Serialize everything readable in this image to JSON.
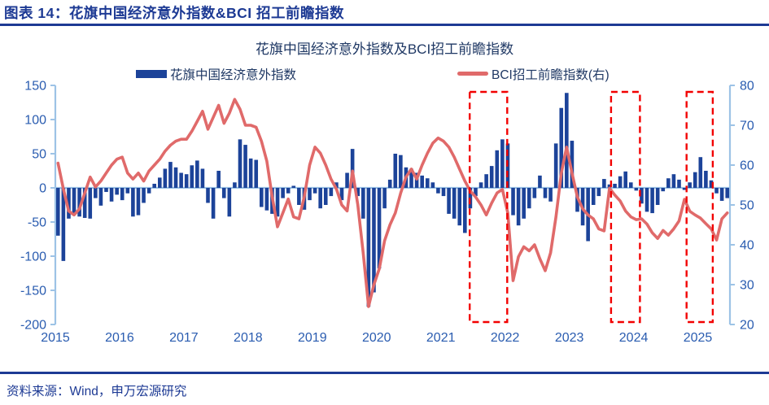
{
  "header": {
    "title": "图表 14：花旗中国经济意外指数&BCI 招工前瞻指数"
  },
  "footer": {
    "source": "资料来源：Wind，申万宏源研究"
  },
  "colors": {
    "navy_rule": "#1d3a94",
    "bar": "#1c4399",
    "line": "#e06a6a",
    "axis": "#9dc3e6",
    "tick_label": "#2a5cb0",
    "highlight_box": "#f20000",
    "title_text": "#1f3864"
  },
  "chart_data": {
    "type": "combo",
    "title": "花旗中国经济意外指数及BCI招工前瞻指数",
    "x": {
      "frequency": "monthly",
      "start": "2015-01",
      "year_labels": [
        "2015",
        "2016",
        "2017",
        "2018",
        "2019",
        "2020",
        "2021",
        "2022",
        "2023",
        "2024",
        "2025"
      ]
    },
    "left_axis": {
      "ticks": [
        150,
        100,
        50,
        0,
        -50,
        -100,
        -150,
        -200
      ],
      "min": -200,
      "max": 150
    },
    "right_axis": {
      "ticks": [
        80,
        70,
        60,
        50,
        40,
        30,
        20
      ],
      "min": 20,
      "max": 80
    },
    "legend": [
      {
        "label": "花旗中国经济意外指数",
        "type": "bar",
        "color": "#1c4399"
      },
      {
        "label": "BCI招工前瞻指数(右)",
        "type": "line",
        "color": "#e06a6a"
      }
    ],
    "series": [
      {
        "name": "花旗中国经济意外指数",
        "type": "bar",
        "axis": "left",
        "color": "#1c4399",
        "values": [
          -70,
          -107,
          -45,
          -38,
          -42,
          -44,
          -45,
          -15,
          -26,
          -6,
          -20,
          -10,
          -18,
          -8,
          -42,
          -40,
          -22,
          -8,
          6,
          15,
          28,
          38,
          30,
          22,
          20,
          33,
          40,
          28,
          -22,
          -45,
          25,
          -15,
          -42,
          8,
          71,
          63,
          43,
          41,
          -28,
          -33,
          -38,
          -42,
          -15,
          -8,
          3,
          -25,
          -32,
          -18,
          -8,
          -30,
          -25,
          -12,
          8,
          -18,
          22,
          57,
          -12,
          -45,
          -174,
          -153,
          -118,
          -30,
          12,
          50,
          48,
          30,
          28,
          22,
          18,
          14,
          8,
          -8,
          -12,
          -38,
          -45,
          -55,
          -66,
          -30,
          -12,
          8,
          20,
          32,
          55,
          71,
          65,
          -40,
          -55,
          -45,
          -30,
          -15,
          18,
          -15,
          -20,
          65,
          117,
          139,
          69,
          -35,
          -55,
          -78,
          -25,
          -12,
          13,
          5,
          6,
          17,
          24,
          8,
          -4,
          -23,
          -35,
          -37,
          -25,
          -5,
          14,
          20,
          12,
          -3,
          8,
          23,
          45,
          25,
          11,
          -8,
          -19,
          -15
        ]
      },
      {
        "name": "BCI招工前瞻指数(右)",
        "type": "line",
        "axis": "right",
        "color": "#e06a6a",
        "values": [
          60.5,
          54,
          48.5,
          47.5,
          49,
          53,
          57,
          54.5,
          56,
          58,
          60,
          61.5,
          62,
          58,
          56.5,
          58,
          56,
          58.5,
          60,
          61.5,
          63.5,
          65,
          66,
          66.5,
          66.5,
          68.5,
          71,
          73.5,
          69,
          72,
          75,
          70.5,
          73,
          76.5,
          74,
          70,
          70,
          69.5,
          66,
          61,
          52,
          44.5,
          48,
          51.5,
          47,
          46.5,
          52,
          60,
          64.5,
          63,
          60,
          56.5,
          54,
          50,
          48.5,
          58.5,
          50,
          38,
          24.5,
          30,
          34,
          41,
          45,
          48,
          53,
          57,
          59,
          56.5,
          60,
          63,
          65.5,
          66.8,
          66,
          64.5,
          62,
          59,
          56,
          53.5,
          52,
          50,
          47.5,
          50.5,
          53,
          53.9,
          48,
          31,
          37,
          39.5,
          38.5,
          40,
          36.5,
          33.5,
          38,
          47,
          58,
          64.5,
          58,
          52,
          49,
          47.5,
          46.5,
          44,
          43.5,
          54.2,
          52.5,
          51,
          48.5,
          47,
          46.3,
          46.5,
          45.2,
          43,
          41.6,
          43.6,
          42.4,
          44,
          46,
          51.4,
          48.4,
          47.5,
          46.7,
          45.3,
          44,
          41.2,
          46.5,
          48
        ]
      }
    ],
    "highlight_boxes": {
      "color": "#f20000",
      "month_ranges": [
        [
          77.4,
          84.4
        ],
        [
          103.8,
          109.2
        ],
        [
          117.9,
          122.8
        ]
      ]
    }
  }
}
